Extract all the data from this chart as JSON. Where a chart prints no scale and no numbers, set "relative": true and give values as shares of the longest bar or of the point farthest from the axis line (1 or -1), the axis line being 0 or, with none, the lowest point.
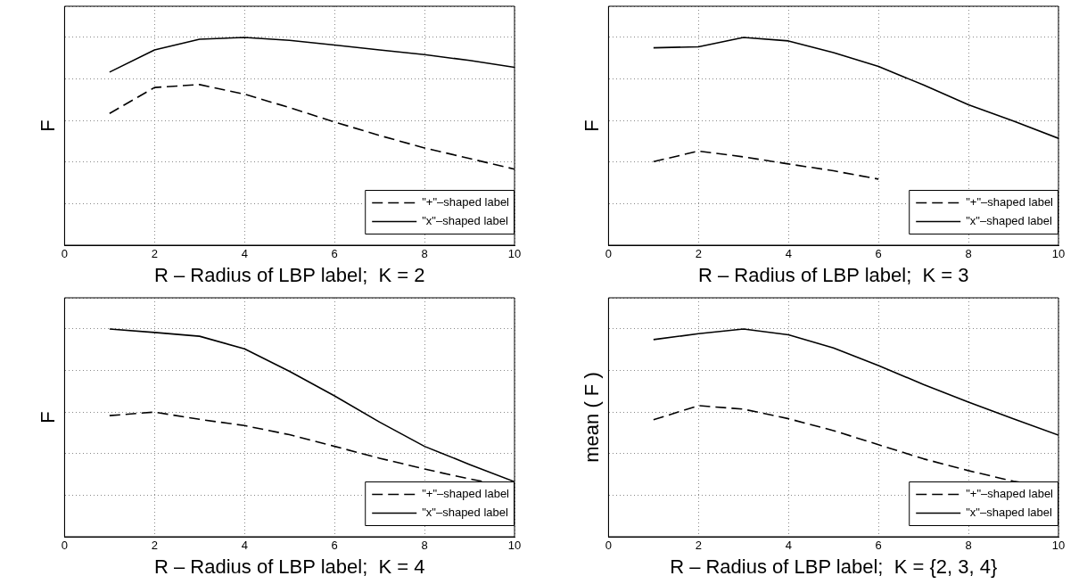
{
  "chart_data": [
    {
      "type": "line",
      "xlabel": "R – Radius of LBP label;  K = 2",
      "ylabel": "F",
      "relative": true,
      "x": [
        1,
        2,
        3,
        4,
        5,
        6,
        7,
        8,
        9,
        10
      ],
      "xlim": [
        0,
        10
      ],
      "xticks": [
        0,
        2,
        4,
        6,
        8,
        10
      ],
      "grid": true,
      "legend": "bottom right",
      "tick_labels": "x",
      "series": [
        {
          "name": "\"+\"–shaped label",
          "color": "#000000",
          "line_style": "dashed",
          "values": [
            0.634,
            0.759,
            0.773,
            0.727,
            0.662,
            0.593,
            0.528,
            0.468,
            0.417,
            0.366
          ]
        },
        {
          "name": "\"x\"–shaped label",
          "color": "#000000",
          "line_style": "solid",
          "values": [
            0.833,
            0.94,
            0.991,
            1,
            0.986,
            0.963,
            0.94,
            0.917,
            0.889,
            0.856
          ]
        }
      ]
    },
    {
      "type": "line",
      "xlabel": "R – Radius of LBP label;  K = 3",
      "ylabel": "F",
      "relative": true,
      "x": [
        1,
        2,
        3,
        4,
        5,
        6,
        7,
        8,
        9,
        10
      ],
      "xlim": [
        0,
        10
      ],
      "xticks": [
        0,
        2,
        4,
        6,
        8,
        10
      ],
      "grid": true,
      "legend": "bottom right",
      "tick_labels": "x",
      "series": [
        {
          "name": "\"+\"–shaped label",
          "color": "#000000",
          "line_style": "dashed",
          "values": [
            0.402,
            0.453,
            0.425,
            0.391,
            0.358,
            0.318,
            null,
            null,
            null,
            null
          ]
        },
        {
          "name": "\"x\"–shaped label",
          "color": "#000000",
          "line_style": "solid",
          "values": [
            0.95,
            0.955,
            1,
            0.983,
            0.927,
            0.86,
            0.771,
            0.676,
            0.598,
            0.514
          ]
        }
      ]
    },
    {
      "type": "line",
      "xlabel": "R – Radius of LBP label;  K = 4",
      "ylabel": "F",
      "relative": true,
      "x": [
        1,
        2,
        3,
        4,
        5,
        6,
        7,
        8,
        9,
        10
      ],
      "xlim": [
        0,
        10
      ],
      "xticks": [
        0,
        2,
        4,
        6,
        8,
        10
      ],
      "grid": true,
      "legend": "bottom right",
      "tick_labels": "x",
      "series": [
        {
          "name": "\"+\"–shaped label",
          "color": "#000000",
          "line_style": "dashed",
          "values": [
            0.583,
            0.6,
            0.565,
            0.535,
            0.491,
            0.435,
            0.378,
            0.326,
            0.278,
            0.239
          ]
        },
        {
          "name": "\"x\"–shaped label",
          "color": "#000000",
          "line_style": "solid",
          "values": [
            1,
            0.983,
            0.965,
            0.904,
            0.796,
            0.678,
            0.552,
            0.435,
            0.348,
            0.265
          ]
        }
      ]
    },
    {
      "type": "line",
      "xlabel": "R – Radius of LBP label;  K = {2, 3, 4}",
      "ylabel": "mean ( F )",
      "relative": true,
      "x": [
        1,
        2,
        3,
        4,
        5,
        6,
        7,
        8,
        9,
        10
      ],
      "xlim": [
        0,
        10
      ],
      "xticks": [
        0,
        2,
        4,
        6,
        8,
        10
      ],
      "grid": true,
      "legend": "bottom right",
      "tick_labels": "x",
      "series": [
        {
          "name": "\"+\"–shaped label",
          "color": "#000000",
          "line_style": "dashed",
          "values": [
            0.563,
            0.631,
            0.614,
            0.568,
            0.511,
            0.443,
            0.375,
            0.318,
            0.267,
            0.233
          ]
        },
        {
          "name": "\"x\"–shaped label",
          "color": "#000000",
          "line_style": "solid",
          "values": [
            0.949,
            0.977,
            1,
            0.972,
            0.909,
            0.824,
            0.733,
            0.648,
            0.568,
            0.489
          ]
        }
      ]
    }
  ]
}
